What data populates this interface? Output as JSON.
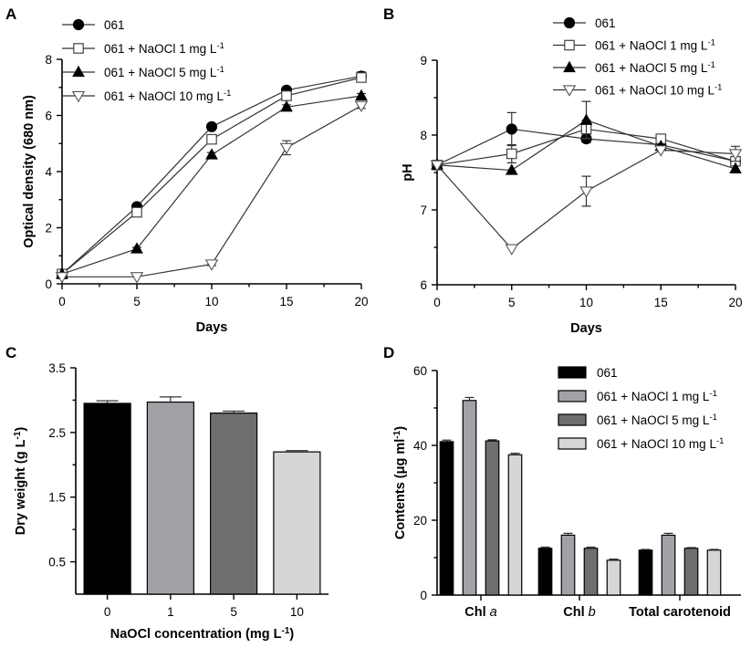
{
  "chart_data": [
    {
      "panel": "A",
      "type": "line",
      "title": "",
      "xlabel": "Days",
      "ylabel": "Optical density (680 nm)",
      "x": [
        0,
        5,
        10,
        15,
        20
      ],
      "xticks": [
        "0",
        "5",
        "10",
        "15",
        "20"
      ],
      "yticks": [
        "0",
        "2",
        "4",
        "6",
        "8"
      ],
      "xlim": [
        0,
        20
      ],
      "ylim": [
        0,
        8
      ],
      "grid": false,
      "legend_position": "top-left",
      "series": [
        {
          "name": "061",
          "marker": "circle",
          "fill": "#000000",
          "values": [
            0.35,
            2.75,
            5.6,
            6.9,
            7.4
          ],
          "errors": [
            0.05,
            0.05,
            0.08,
            0.08,
            0.15
          ]
        },
        {
          "name": "061 + NaOCl 1 mg L-1",
          "label_main": "061 + NaOCl 1 mg L",
          "label_sup": "-1",
          "marker": "square",
          "fill": "#ffffff",
          "values": [
            0.35,
            2.55,
            5.15,
            6.7,
            7.35
          ],
          "errors": [
            0.05,
            0.05,
            0.1,
            0.08,
            0.1
          ]
        },
        {
          "name": "061 + NaOCl 5 mg L-1",
          "label_main": "061 + NaOCl 5 mg L",
          "label_sup": "-1",
          "marker": "triangle-up",
          "fill": "#000000",
          "values": [
            0.35,
            1.25,
            4.6,
            6.3,
            6.7
          ],
          "errors": [
            0.05,
            0.05,
            0.08,
            0.08,
            0.08
          ]
        },
        {
          "name": "061 + NaOCl 10 mg L-1",
          "label_main": "061 + NaOCl 10 mg L",
          "label_sup": "-1",
          "marker": "triangle-down",
          "fill": "#ffffff",
          "values": [
            0.25,
            0.25,
            0.7,
            4.85,
            6.35
          ],
          "errors": [
            0.03,
            0.03,
            0.05,
            0.25,
            0.1
          ]
        }
      ]
    },
    {
      "panel": "B",
      "type": "line",
      "title": "",
      "xlabel": "Days",
      "ylabel": "pH",
      "x": [
        0,
        5,
        10,
        15,
        20
      ],
      "xticks": [
        "0",
        "5",
        "10",
        "15",
        "20"
      ],
      "yticks": [
        "6",
        "7",
        "8",
        "9"
      ],
      "xlim": [
        0,
        20
      ],
      "ylim": [
        6,
        9
      ],
      "grid": false,
      "legend_position": "top-right",
      "series": [
        {
          "name": "061",
          "marker": "circle",
          "fill": "#000000",
          "values": [
            7.6,
            8.08,
            7.95,
            7.87,
            7.65
          ],
          "errors": [
            0.03,
            0.22,
            0.05,
            0.03,
            0.03
          ]
        },
        {
          "name": "061 + NaOCl 1 mg L-1",
          "label_main": "061 + NaOCl 1 mg L",
          "label_sup": "-1",
          "marker": "square",
          "fill": "#ffffff",
          "values": [
            7.6,
            7.75,
            8.08,
            7.95,
            7.65
          ],
          "errors": [
            0.03,
            0.12,
            0.12,
            0.03,
            0.03
          ]
        },
        {
          "name": "061 + NaOCl 5 mg L-1",
          "label_main": "061 + NaOCl 5 mg L",
          "label_sup": "-1",
          "marker": "triangle-up",
          "fill": "#000000",
          "values": [
            7.6,
            7.53,
            8.2,
            7.85,
            7.55
          ],
          "errors": [
            0.03,
            0.03,
            0.25,
            0.03,
            0.03
          ]
        },
        {
          "name": "061 + NaOCl 10 mg L-1",
          "label_main": "061 + NaOCl 10 mg L",
          "label_sup": "-1",
          "marker": "triangle-down",
          "fill": "#ffffff",
          "values": [
            7.6,
            6.48,
            7.25,
            7.8,
            7.75
          ],
          "errors": [
            0.03,
            0.03,
            0.2,
            0.03,
            0.1
          ]
        }
      ]
    },
    {
      "panel": "C",
      "type": "bar",
      "title": "",
      "xlabel_main": "NaOCl concentration (mg L",
      "xlabel_sup": "-1",
      "xlabel_end": ")",
      "ylabel_main": "Dry weight (g L",
      "ylabel_sup": "-1",
      "ylabel_end": ")",
      "categories": [
        "0",
        "1",
        "5",
        "10"
      ],
      "values": [
        2.95,
        2.97,
        2.8,
        2.2
      ],
      "errors": [
        0.04,
        0.08,
        0.03,
        0.02
      ],
      "colors": [
        "#000000",
        "#a2a2a6",
        "#6e6e6e",
        "#d6d6d6"
      ],
      "yticks": [
        "0.5",
        "1.5",
        "2.5",
        "3.5"
      ],
      "ylim": [
        0,
        3.5
      ],
      "grid": false
    },
    {
      "panel": "D",
      "type": "bar",
      "title": "",
      "xlabel": "",
      "ylabel_main": "Contents (μg ml",
      "ylabel_sup": "-1",
      "ylabel_end": ")",
      "categories": [
        {
          "main": "Chl ",
          "italic": "a"
        },
        {
          "main": "Chl ",
          "italic": "b"
        },
        {
          "main": "Total carotenoid",
          "italic": ""
        }
      ],
      "yticks": [
        "0",
        "20",
        "40",
        "60"
      ],
      "ylim": [
        0,
        60
      ],
      "grid": false,
      "legend_position": "top-right",
      "series": [
        {
          "name": "061",
          "label_main": "061",
          "label_sup": "",
          "color": "#000000",
          "values": [
            41,
            12.5,
            12
          ],
          "errors": [
            0.4,
            0.3,
            0.2
          ]
        },
        {
          "name": "061 + NaOCl 1 mg L-1",
          "label_main": "061 + NaOCl 1 mg L",
          "label_sup": "-1",
          "color": "#a2a2a6",
          "values": [
            52,
            16,
            16
          ],
          "errors": [
            0.8,
            0.5,
            0.5
          ]
        },
        {
          "name": "061 + NaOCl 5 mg L-1",
          "label_main": "061 + NaOCl 5 mg L",
          "label_sup": "-1",
          "color": "#6e6e6e",
          "values": [
            41.2,
            12.5,
            12.5
          ],
          "errors": [
            0.3,
            0.3,
            0.2
          ]
        },
        {
          "name": "061 + NaOCl 10 mg L-1",
          "label_main": "061 + NaOCl 10 mg L",
          "label_sup": "-1",
          "color": "#d6d6d6",
          "values": [
            37.5,
            9.3,
            12
          ],
          "errors": [
            0.4,
            0.3,
            0.2
          ]
        }
      ]
    }
  ]
}
